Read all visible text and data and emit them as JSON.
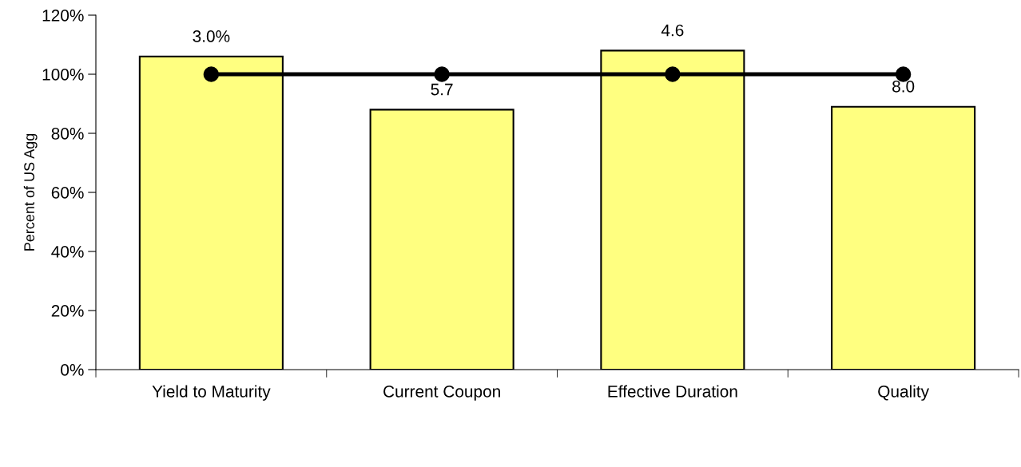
{
  "chart_data": {
    "type": "bar",
    "ylabel": "Percent of US Agg",
    "categories": [
      "Yield to Maturity",
      "Current Coupon",
      "Effective Duration",
      "Quality"
    ],
    "series": [
      {
        "color": "#ffff80",
        "values": [
          106,
          88,
          108,
          89
        ]
      },
      {
        "type": "line",
        "color": "#000000",
        "values": [
          100,
          100,
          100,
          100
        ],
        "marker": "circle",
        "line_style": "solid"
      }
    ],
    "annotations": [
      {
        "text": "3.0%",
        "x": "Yield to Maturity",
        "y": 106
      },
      {
        "text": "5.7",
        "x": "Current Coupon",
        "y": 88
      },
      {
        "text": "4.6",
        "x": "Effective Duration",
        "y": 108
      },
      {
        "text": "8.0",
        "x": "Quality",
        "y": 89
      }
    ],
    "ylim": [
      0,
      120
    ],
    "yticks": [
      {
        "value": 0,
        "label": "0%"
      },
      {
        "value": 20,
        "label": "20%"
      },
      {
        "value": 40,
        "label": "40%"
      },
      {
        "value": 60,
        "label": "60%"
      },
      {
        "value": 80,
        "label": "80%"
      },
      {
        "value": 100,
        "label": "100%"
      },
      {
        "value": 120,
        "label": "120%"
      }
    ],
    "grid": false
  }
}
